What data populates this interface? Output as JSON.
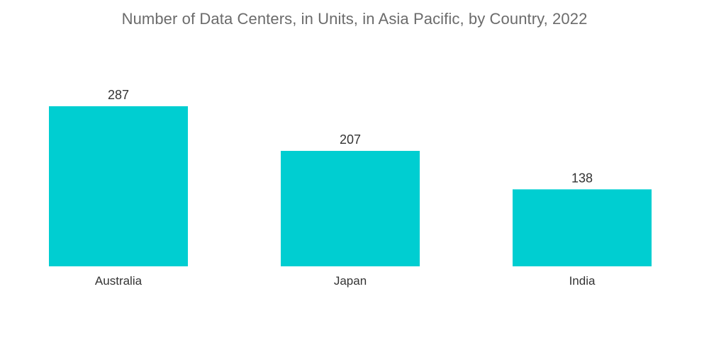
{
  "chart_data": {
    "type": "bar",
    "title": "Number of Data Centers, in Units, in Asia Pacific, by Country, 2022",
    "categories": [
      "Australia",
      "Japan",
      "India"
    ],
    "values": [
      287,
      207,
      138
    ],
    "xlabel": "",
    "ylabel": "",
    "ylim": [
      0,
      287
    ],
    "grid": false,
    "legend": "none",
    "bar_color": "#00CED1"
  }
}
